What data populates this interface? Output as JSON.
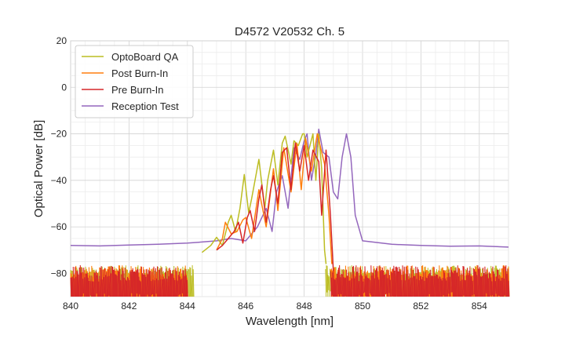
{
  "chart_data": {
    "type": "line",
    "title": "D4572 V20532 Ch. 5",
    "xlabel": "Wavelength [nm]",
    "ylabel": "Optical Power [dB]",
    "xlim": [
      840,
      855
    ],
    "ylim": [
      -90,
      20
    ],
    "xticks": [
      "840",
      "842",
      "844",
      "846",
      "848",
      "850",
      "852",
      "854"
    ],
    "yticks": [
      "20",
      "0",
      "−20",
      "−40",
      "−60",
      "−80"
    ],
    "grid": true,
    "legend_position": "top-left",
    "noise_floor": {
      "OptoBoard QA": {
        "outside_band": -79,
        "x_range": [
          844.2,
          848.7
        ]
      },
      "Post Burn-In": {
        "outside_band": -80,
        "x_range": [
          844.0,
          848.9
        ]
      },
      "Pre Burn-In": {
        "outside_band": -80,
        "x_range": [
          844.0,
          848.9
        ]
      },
      "Reception Test": {
        "outside_band": -67.5,
        "x_range": [
          840,
          855
        ]
      }
    },
    "series": [
      {
        "name": "OptoBoard QA",
        "color": "#bcbd22",
        "points": [
          [
            844.5,
            -71
          ],
          [
            844.8,
            -68
          ],
          [
            845.0,
            -64.5
          ],
          [
            845.2,
            -68
          ],
          [
            845.4,
            -58
          ],
          [
            845.5,
            -55
          ],
          [
            845.65,
            -62
          ],
          [
            845.8,
            -52
          ],
          [
            845.95,
            -37.5
          ],
          [
            846.1,
            -54
          ],
          [
            846.2,
            -48
          ],
          [
            846.45,
            -31
          ],
          [
            846.65,
            -52
          ],
          [
            846.75,
            -40
          ],
          [
            846.95,
            -27
          ],
          [
            847.1,
            -42
          ],
          [
            847.25,
            -24
          ],
          [
            847.35,
            -21
          ],
          [
            847.55,
            -33
          ],
          [
            847.65,
            -23
          ],
          [
            847.8,
            -25
          ],
          [
            847.95,
            -20
          ],
          [
            848.0,
            -20
          ],
          [
            848.1,
            -30
          ],
          [
            848.2,
            -25
          ],
          [
            848.3,
            -20
          ],
          [
            848.4,
            -40
          ],
          [
            848.5,
            -20
          ],
          [
            848.6,
            -35
          ],
          [
            848.7,
            -70
          ],
          [
            848.75,
            -76
          ]
        ]
      },
      {
        "name": "Post Burn-In",
        "color": "#ff7f0e",
        "points": [
          [
            845.0,
            -70
          ],
          [
            845.2,
            -65
          ],
          [
            845.3,
            -58
          ],
          [
            845.5,
            -63
          ],
          [
            845.7,
            -62
          ],
          [
            845.9,
            -57
          ],
          [
            846.0,
            -56
          ],
          [
            846.2,
            -65
          ],
          [
            846.45,
            -44
          ],
          [
            846.7,
            -60
          ],
          [
            846.95,
            -35
          ],
          [
            847.1,
            -53
          ],
          [
            847.3,
            -26
          ],
          [
            847.55,
            -45
          ],
          [
            847.75,
            -24
          ],
          [
            847.9,
            -44
          ],
          [
            848.05,
            -22
          ],
          [
            848.25,
            -36
          ],
          [
            848.45,
            -20
          ],
          [
            848.7,
            -33
          ],
          [
            848.85,
            -55
          ],
          [
            848.95,
            -76
          ]
        ]
      },
      {
        "name": "Pre Burn-In",
        "color": "#d62728",
        "points": [
          [
            845.0,
            -70
          ],
          [
            845.2,
            -68
          ],
          [
            845.4,
            -65
          ],
          [
            845.6,
            -62
          ],
          [
            845.75,
            -58
          ],
          [
            845.9,
            -67
          ],
          [
            846.05,
            -56
          ],
          [
            846.15,
            -53
          ],
          [
            846.3,
            -62
          ],
          [
            846.45,
            -48
          ],
          [
            846.55,
            -42
          ],
          [
            846.7,
            -58
          ],
          [
            846.85,
            -44
          ],
          [
            846.95,
            -38
          ],
          [
            847.1,
            -50
          ],
          [
            847.25,
            -28
          ],
          [
            847.4,
            -26
          ],
          [
            847.55,
            -44
          ],
          [
            847.7,
            -24
          ],
          [
            847.85,
            -36
          ],
          [
            848.0,
            -25
          ],
          [
            848.15,
            -40
          ],
          [
            848.3,
            -27
          ],
          [
            848.5,
            -32
          ],
          [
            848.6,
            -55
          ],
          [
            848.75,
            -27
          ],
          [
            848.9,
            -55
          ],
          [
            849.0,
            -79
          ]
        ]
      },
      {
        "name": "Reception Test",
        "color": "#9467bd",
        "points": [
          [
            840,
            -68
          ],
          [
            841,
            -68.2
          ],
          [
            842,
            -67.8
          ],
          [
            843,
            -67.5
          ],
          [
            844,
            -67
          ],
          [
            844.5,
            -66.5
          ],
          [
            845,
            -66
          ],
          [
            845.5,
            -65
          ],
          [
            846.0,
            -66
          ],
          [
            846.4,
            -60
          ],
          [
            846.7,
            -52
          ],
          [
            846.9,
            -62
          ],
          [
            847.05,
            -45
          ],
          [
            847.25,
            -38
          ],
          [
            847.45,
            -52
          ],
          [
            847.65,
            -26
          ],
          [
            847.85,
            -31
          ],
          [
            848.0,
            -23
          ],
          [
            848.1,
            -20
          ],
          [
            848.25,
            -40
          ],
          [
            848.4,
            -29
          ],
          [
            848.5,
            -18
          ],
          [
            848.65,
            -28
          ],
          [
            848.85,
            -30
          ],
          [
            849.0,
            -45
          ],
          [
            849.15,
            -48
          ],
          [
            849.3,
            -30
          ],
          [
            849.45,
            -20
          ],
          [
            849.6,
            -30
          ],
          [
            849.75,
            -55
          ],
          [
            850,
            -66
          ],
          [
            851,
            -67.5
          ],
          [
            852,
            -68
          ],
          [
            853,
            -68.3
          ],
          [
            854,
            -68.2
          ],
          [
            855,
            -68.7
          ]
        ]
      }
    ]
  }
}
